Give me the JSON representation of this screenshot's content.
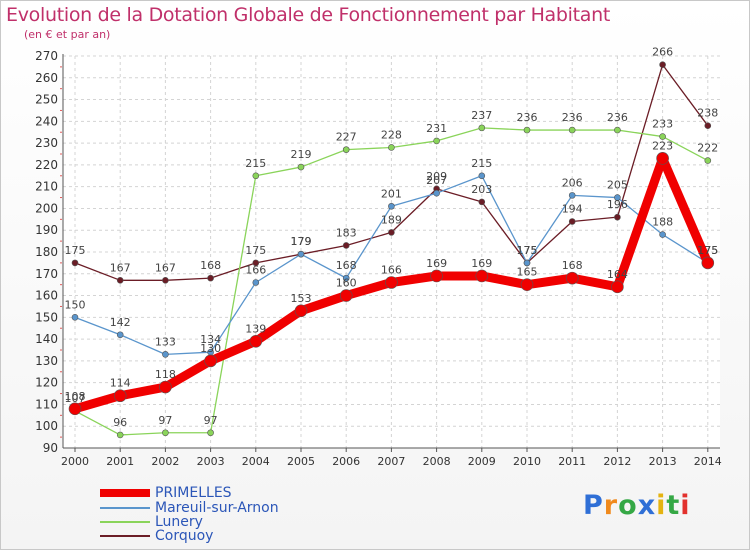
{
  "chart_data": {
    "type": "line",
    "title": "Evolution de la Dotation Globale de Fonctionnement par Habitant",
    "subtitle": "(en € et par an)",
    "xlabel": "",
    "ylabel": "",
    "ylim": [
      90,
      270
    ],
    "yticks": [
      90,
      100,
      110,
      120,
      130,
      140,
      150,
      160,
      170,
      180,
      190,
      200,
      210,
      220,
      230,
      240,
      250,
      260,
      270
    ],
    "grid": true,
    "legend_position": "bottom-left",
    "categories": [
      "2000",
      "2001",
      "2002",
      "2003",
      "2004",
      "2005",
      "2006",
      "2007",
      "2008",
      "2009",
      "2010",
      "2011",
      "2012",
      "2013",
      "2014"
    ],
    "series": [
      {
        "name": "Corquoy",
        "color": "#6b1d26",
        "values": [
          175,
          167,
          167,
          168,
          175,
          179,
          183,
          189,
          209,
          203,
          175,
          194,
          196,
          266,
          238
        ],
        "labels": [
          "175",
          "167",
          "167",
          "168",
          "175",
          "179",
          "183",
          "189",
          "209",
          "203",
          "175",
          "194",
          "196",
          "266",
          "238"
        ]
      },
      {
        "name": "Lunery",
        "color": "#8ad45a",
        "values": [
          107,
          96,
          97,
          97,
          215,
          219,
          227,
          228,
          231,
          237,
          236,
          236,
          236,
          233,
          222
        ],
        "labels": [
          "107",
          "96",
          "97",
          "97",
          "215",
          "219",
          "227",
          "228",
          "231",
          "237",
          "236",
          "236",
          "236",
          "233",
          "222"
        ]
      },
      {
        "name": "Mareuil-sur-Arnon",
        "color": "#5a95cc",
        "values": [
          150,
          142,
          133,
          134,
          166,
          179,
          168,
          201,
          207,
          215,
          175,
          206,
          205,
          188,
          175
        ],
        "labels": [
          "150",
          "142",
          "133",
          "134",
          "166",
          "179",
          "168",
          "201",
          "207",
          "215",
          "175",
          "206",
          "205",
          "188",
          "175"
        ]
      },
      {
        "name": "PRIMELLES",
        "color": "#f00000",
        "values": [
          108,
          114,
          118,
          130,
          139,
          153,
          160,
          166,
          169,
          169,
          165,
          168,
          164,
          223,
          175
        ],
        "labels": [
          "108",
          "114",
          "118",
          "130",
          "139",
          "153",
          "160",
          "166",
          "169",
          "169",
          "165",
          "168",
          "164",
          "223",
          "175"
        ]
      }
    ]
  },
  "legend": [
    {
      "name": "PRIMELLES",
      "color": "#f00000"
    },
    {
      "name": "Mareuil-sur-Arnon",
      "color": "#5a95cc"
    },
    {
      "name": "Lunery",
      "color": "#8ad45a"
    },
    {
      "name": "Corquoy",
      "color": "#6b1d26"
    }
  ],
  "logo": {
    "text": "Proxiti"
  }
}
